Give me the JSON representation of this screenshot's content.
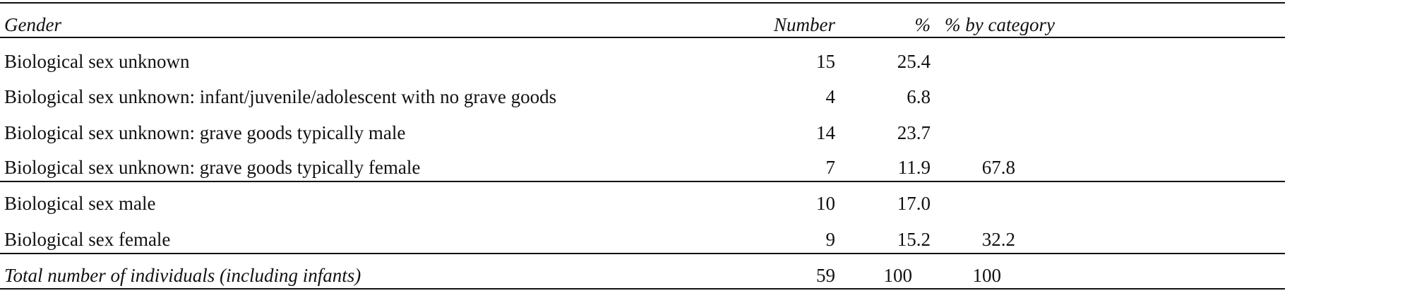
{
  "table": {
    "headers": [
      "Gender",
      "Number",
      "%",
      "% by category"
    ],
    "rows": [
      {
        "gender": "Biological sex unknown",
        "number": "15",
        "percent": "25.4",
        "by_category": ""
      },
      {
        "gender": "Biological sex unknown: infant/juvenile/adolescent with no grave goods",
        "number": "4",
        "percent": "6.8",
        "by_category": ""
      },
      {
        "gender": "Biological sex unknown: grave goods typically male",
        "number": "14",
        "percent": "23.7",
        "by_category": ""
      },
      {
        "gender": "Biological sex unknown: grave goods typically female",
        "number": "7",
        "percent": "11.9",
        "by_category": "67.8"
      },
      {
        "gender": "Biological sex male",
        "number": "10",
        "percent": "17.0",
        "by_category": ""
      },
      {
        "gender": "Biological sex female",
        "number": "9",
        "percent": "15.2",
        "by_category": "32.2"
      }
    ],
    "total": {
      "gender": "Total number of individuals (including infants)",
      "number": "59",
      "percent": "100",
      "by_category": "100"
    }
  }
}
